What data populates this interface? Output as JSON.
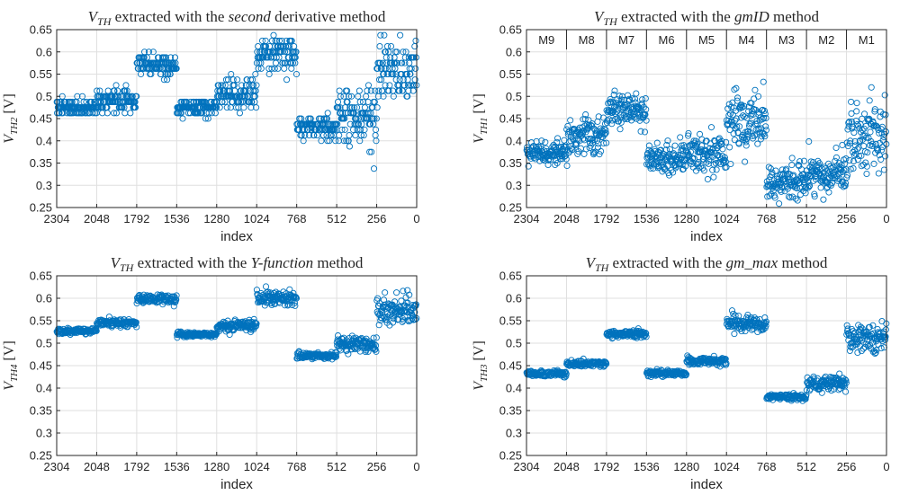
{
  "chart_data": [
    {
      "type": "scatter",
      "title": {
        "main": "V",
        "sub": "TH",
        "pre": " extracted with the ",
        "em": "second",
        "post": " derivative method"
      },
      "ylabel": {
        "main": "V",
        "sub": "TH2",
        "unit": " [V]"
      },
      "xlabel": "index",
      "xlim": [
        2304,
        0
      ],
      "ylim": [
        0.25,
        0.65
      ],
      "xticks": [
        "2304",
        "2048",
        "1792",
        "1536",
        "1280",
        "1024",
        "768",
        "512",
        "256",
        "0"
      ],
      "yticks": [
        "0.25",
        "0.3",
        "0.35",
        "0.4",
        "0.45",
        "0.5",
        "0.55",
        "0.6",
        "0.65"
      ],
      "grid": true,
      "marker_color": "#0072BD",
      "groups": [
        {
          "range": [
            2304,
            2048
          ],
          "center": 0.475,
          "spread": 0.008,
          "quantized": true
        },
        {
          "range": [
            2048,
            1792
          ],
          "center": 0.49,
          "spread": 0.012,
          "quantized": true
        },
        {
          "range": [
            1792,
            1536
          ],
          "center": 0.57,
          "spread": 0.012,
          "quantized": true
        },
        {
          "range": [
            1536,
            1280
          ],
          "center": 0.475,
          "spread": 0.008,
          "quantized": true
        },
        {
          "range": [
            1280,
            1024
          ],
          "center": 0.505,
          "spread": 0.018,
          "quantized": true
        },
        {
          "range": [
            1024,
            768
          ],
          "center": 0.595,
          "spread": 0.018,
          "quantized": true
        },
        {
          "range": [
            768,
            512
          ],
          "center": 0.43,
          "spread": 0.012,
          "quantized": true
        },
        {
          "range": [
            512,
            256
          ],
          "center": 0.45,
          "spread": 0.03,
          "quantized": true
        },
        {
          "range": [
            256,
            0
          ],
          "center": 0.56,
          "spread": 0.035,
          "quantized": true
        }
      ]
    },
    {
      "type": "scatter",
      "title": {
        "main": "V",
        "sub": "TH",
        "pre": " extracted with the ",
        "em": "gmID",
        "post": " method"
      },
      "ylabel": {
        "main": "V",
        "sub": "TH1",
        "unit": " [V]"
      },
      "xlabel": "index",
      "xlim": [
        2304,
        0
      ],
      "ylim": [
        0.25,
        0.65
      ],
      "xticks": [
        "2304",
        "2048",
        "1792",
        "1536",
        "1280",
        "1024",
        "768",
        "512",
        "256",
        "0"
      ],
      "yticks": [
        "0.25",
        "0.3",
        "0.35",
        "0.4",
        "0.45",
        "0.5",
        "0.55",
        "0.6",
        "0.65"
      ],
      "grid": true,
      "marker_color": "#0072BD",
      "group_labels": [
        "M9",
        "M8",
        "M7",
        "M6",
        "M5",
        "M4",
        "M3",
        "M2",
        "M1"
      ],
      "groups": [
        {
          "range": [
            2304,
            2048
          ],
          "center": 0.375,
          "spread": 0.012,
          "quantized": false
        },
        {
          "range": [
            2048,
            1792
          ],
          "center": 0.41,
          "spread": 0.02,
          "quantized": false
        },
        {
          "range": [
            1792,
            1536
          ],
          "center": 0.47,
          "spread": 0.02,
          "quantized": false
        },
        {
          "range": [
            1536,
            1280
          ],
          "center": 0.36,
          "spread": 0.018,
          "quantized": false
        },
        {
          "range": [
            1280,
            1024
          ],
          "center": 0.37,
          "spread": 0.025,
          "quantized": false
        },
        {
          "range": [
            1024,
            768
          ],
          "center": 0.44,
          "spread": 0.035,
          "quantized": false
        },
        {
          "range": [
            768,
            512
          ],
          "center": 0.305,
          "spread": 0.02,
          "quantized": false
        },
        {
          "range": [
            512,
            256
          ],
          "center": 0.325,
          "spread": 0.022,
          "quantized": false
        },
        {
          "range": [
            256,
            0
          ],
          "center": 0.42,
          "spread": 0.04,
          "quantized": false
        }
      ]
    },
    {
      "type": "scatter",
      "title": {
        "main": "V",
        "sub": "TH",
        "pre": " extracted with the ",
        "em": "Y-function",
        "post": " method"
      },
      "ylabel": {
        "main": "V",
        "sub": "TH4",
        "unit": " [V]"
      },
      "xlabel": "index",
      "xlim": [
        2304,
        0
      ],
      "ylim": [
        0.25,
        0.65
      ],
      "xticks": [
        "2304",
        "2048",
        "1792",
        "1536",
        "1280",
        "1024",
        "768",
        "512",
        "256",
        "0"
      ],
      "yticks": [
        "0.25",
        "0.3",
        "0.35",
        "0.4",
        "0.45",
        "0.5",
        "0.55",
        "0.6",
        "0.65"
      ],
      "grid": true,
      "marker_color": "#0072BD",
      "groups": [
        {
          "range": [
            2304,
            2048
          ],
          "center": 0.527,
          "spread": 0.003,
          "quantized": false
        },
        {
          "range": [
            2048,
            1792
          ],
          "center": 0.545,
          "spread": 0.004,
          "quantized": false
        },
        {
          "range": [
            1792,
            1536
          ],
          "center": 0.598,
          "spread": 0.005,
          "quantized": false
        },
        {
          "range": [
            1536,
            1280
          ],
          "center": 0.519,
          "spread": 0.003,
          "quantized": false
        },
        {
          "range": [
            1280,
            1024
          ],
          "center": 0.537,
          "spread": 0.006,
          "quantized": false
        },
        {
          "range": [
            1024,
            768
          ],
          "center": 0.601,
          "spread": 0.008,
          "quantized": false
        },
        {
          "range": [
            768,
            512
          ],
          "center": 0.472,
          "spread": 0.004,
          "quantized": false
        },
        {
          "range": [
            512,
            256
          ],
          "center": 0.497,
          "spread": 0.008,
          "quantized": false
        },
        {
          "range": [
            256,
            0
          ],
          "center": 0.575,
          "spread": 0.015,
          "quantized": false
        }
      ]
    },
    {
      "type": "scatter",
      "title": {
        "main": "V",
        "sub": "TH",
        "pre": " extracted with the ",
        "em": "gm_max",
        "post": " method"
      },
      "ylabel": {
        "main": "V",
        "sub": "TH3",
        "unit": " [V]"
      },
      "xlabel": "index",
      "xlim": [
        2304,
        0
      ],
      "ylim": [
        0.25,
        0.65
      ],
      "xticks": [
        "2304",
        "2048",
        "1792",
        "1536",
        "1280",
        "1024",
        "768",
        "512",
        "256",
        "0"
      ],
      "yticks": [
        "0.25",
        "0.3",
        "0.35",
        "0.4",
        "0.45",
        "0.5",
        "0.55",
        "0.6",
        "0.65"
      ],
      "grid": true,
      "marker_color": "#0072BD",
      "groups": [
        {
          "range": [
            2304,
            2048
          ],
          "center": 0.432,
          "spread": 0.003,
          "quantized": false
        },
        {
          "range": [
            2048,
            1792
          ],
          "center": 0.455,
          "spread": 0.004,
          "quantized": false
        },
        {
          "range": [
            1792,
            1536
          ],
          "center": 0.52,
          "spread": 0.005,
          "quantized": false
        },
        {
          "range": [
            1536,
            1280
          ],
          "center": 0.433,
          "spread": 0.003,
          "quantized": false
        },
        {
          "range": [
            1280,
            1024
          ],
          "center": 0.46,
          "spread": 0.005,
          "quantized": false
        },
        {
          "range": [
            1024,
            768
          ],
          "center": 0.542,
          "spread": 0.008,
          "quantized": false
        },
        {
          "range": [
            768,
            512
          ],
          "center": 0.38,
          "spread": 0.003,
          "quantized": false
        },
        {
          "range": [
            512,
            256
          ],
          "center": 0.412,
          "spread": 0.008,
          "quantized": false
        },
        {
          "range": [
            256,
            0
          ],
          "center": 0.512,
          "spread": 0.018,
          "quantized": false
        }
      ]
    }
  ]
}
